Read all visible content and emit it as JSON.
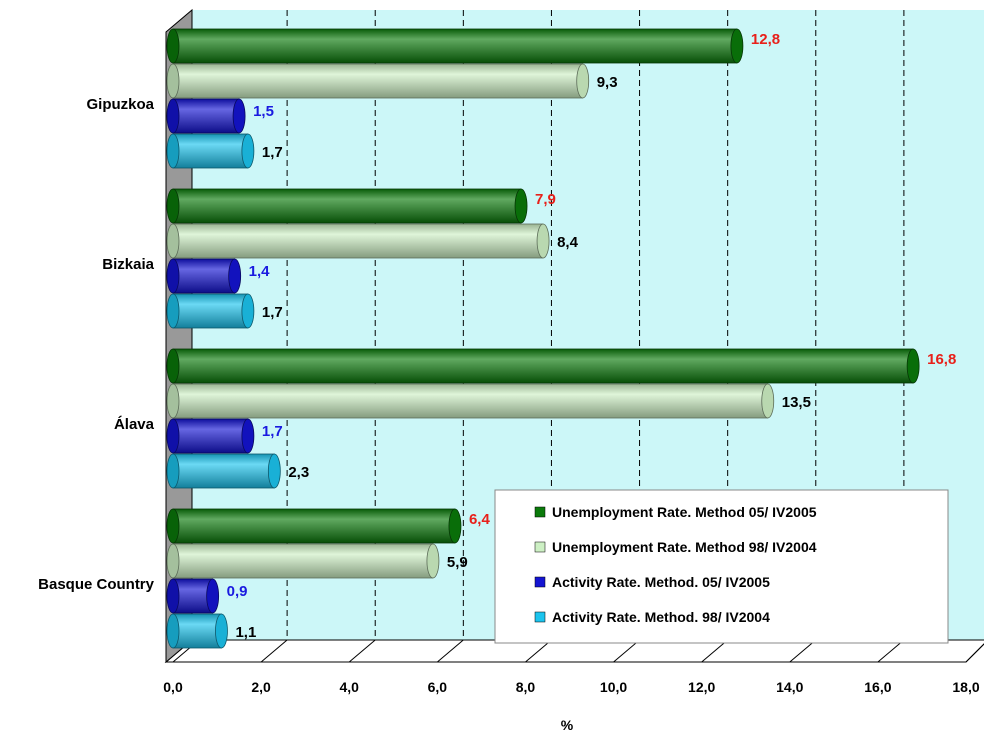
{
  "chart_data": {
    "type": "bar",
    "orientation": "horizontal",
    "categories": [
      "Gipuzkoa",
      "Bizkaia",
      "Álava",
      "Basque Country"
    ],
    "series": [
      {
        "name": "Unemployment Rate. Method 05/ IV2005",
        "values": [
          12.8,
          7.9,
          16.8,
          6.4
        ],
        "labels": [
          "12,8",
          "7,9",
          "16,8",
          "6,4"
        ],
        "color": "#0a7a0a",
        "label_color": "#e8201a"
      },
      {
        "name": "Unemployment Rate. Method 98/ IV2004",
        "values": [
          9.3,
          8.4,
          13.5,
          5.9
        ],
        "labels": [
          "9,3",
          "8,4",
          "13,5",
          "5,9"
        ],
        "color": "#cdf0c4",
        "label_color": "#000000"
      },
      {
        "name": "Activity Rate. Method. 05/ IV2005",
        "values": [
          1.5,
          1.4,
          1.7,
          0.9
        ],
        "labels": [
          "1,5",
          "1,4",
          "1,7",
          "0,9"
        ],
        "color": "#1414d2",
        "label_color": "#1a1ae0"
      },
      {
        "name": "Activity Rate. Method. 98/ IV2004",
        "values": [
          1.7,
          1.7,
          2.3,
          1.1
        ],
        "labels": [
          "1,7",
          "1,7",
          "2,3",
          "1,1"
        ],
        "color": "#1cc4ee",
        "label_color": "#000000"
      }
    ],
    "xlim": [
      0,
      18
    ],
    "xticks": [
      "0,0",
      "2,0",
      "4,0",
      "6,0",
      "8,0",
      "10,0",
      "12,0",
      "14,0",
      "16,0",
      "18,0"
    ],
    "xlabel": "%",
    "legend_position": "bottom-right",
    "grid": "dashed vertical",
    "background_color": "#ccf7f8",
    "wall_color": "#999999"
  }
}
